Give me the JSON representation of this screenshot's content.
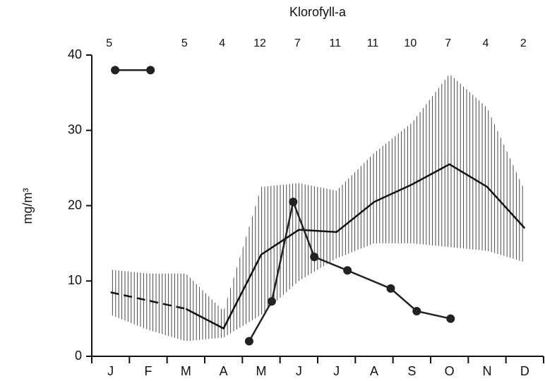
{
  "chart_data": {
    "type": "line",
    "title": "Klorofyll-a",
    "y_label": "mg/m³",
    "categories": [
      "J",
      "F",
      "M",
      "A",
      "M",
      "J",
      "J",
      "A",
      "S",
      "O",
      "N",
      "D"
    ],
    "top_labels": [
      5,
      null,
      5,
      4,
      12,
      7,
      11,
      11,
      10,
      7,
      4,
      2
    ],
    "x": [
      0.5,
      1.5,
      2.5,
      3.5,
      4.5,
      5.5,
      6.5,
      7.5,
      8.5,
      9.5,
      10.5,
      11.5
    ],
    "xlim": [
      0,
      12
    ],
    "ylim": [
      0,
      40
    ],
    "yticks": [
      0,
      10,
      20,
      30,
      40
    ],
    "band": {
      "upper": [
        11.5,
        11,
        11,
        6,
        22.5,
        23,
        22,
        27,
        31,
        37.5,
        33,
        22
      ],
      "lower": [
        5.5,
        3.5,
        2,
        2.5,
        5.5,
        10,
        13,
        15,
        15,
        14.5,
        14,
        12.5
      ]
    },
    "series": [
      {
        "style": "dashed",
        "color": "#111111",
        "values": [
          8.5,
          7.4,
          6.3,
          null,
          null,
          null,
          null,
          null,
          null,
          null,
          null,
          null
        ]
      },
      {
        "style": "solid",
        "color": "#111111",
        "values": [
          null,
          null,
          6.3,
          3.7,
          13.5,
          16.8,
          16.5,
          20.5,
          22.8,
          25.5,
          22.5,
          17
        ]
      }
    ],
    "observed": [
      {
        "color": "#222222",
        "x": [
          0.62,
          1.56
        ],
        "values": [
          38,
          38
        ]
      },
      {
        "color": "#222222",
        "x": [
          4.18,
          4.78,
          5.35,
          5.91,
          6.79,
          7.94,
          8.63,
          9.53
        ],
        "values": [
          2,
          7.3,
          20.5,
          13.2,
          11.4,
          9,
          6,
          5
        ]
      }
    ]
  }
}
